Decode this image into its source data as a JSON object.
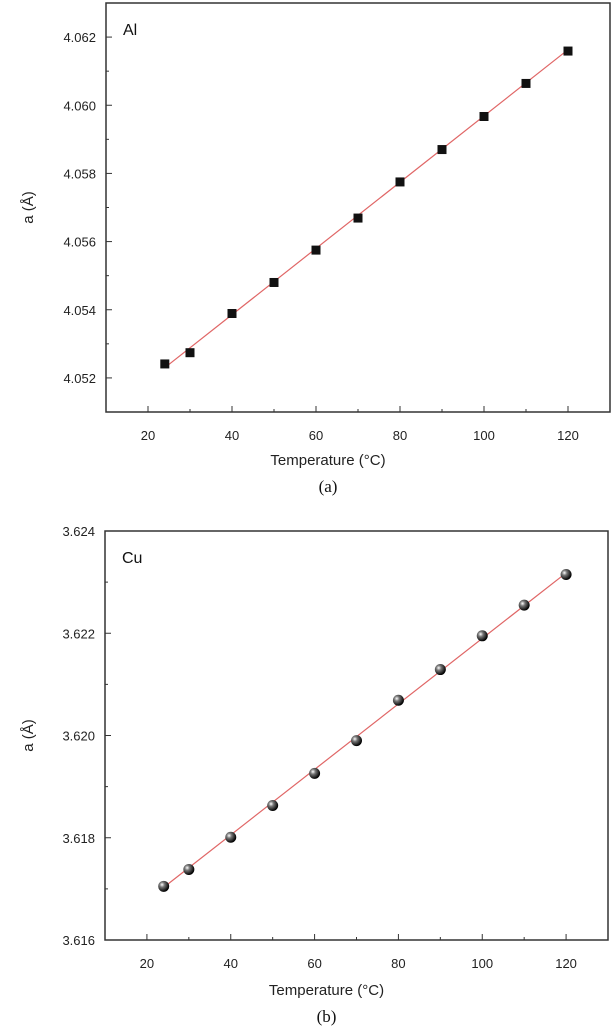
{
  "chart_data": [
    {
      "type": "scatter",
      "panel_label": "(a)",
      "annotation": "Al",
      "xlabel": "Temperature (°C)",
      "ylabel": "a (Å)",
      "xlim": [
        10,
        130
      ],
      "ylim": [
        4.051,
        4.063
      ],
      "xticks": [
        20,
        40,
        60,
        80,
        100,
        120
      ],
      "yticks": [
        4.052,
        4.054,
        4.056,
        4.058,
        4.06,
        4.062
      ],
      "ytick_labels": [
        "4.052",
        "4.054",
        "4.056",
        "4.058",
        "4.060",
        "4.062"
      ],
      "grid": false,
      "marker": "square",
      "marker_color": "#111111",
      "fit_line_color": "#e06666",
      "x": [
        24,
        30,
        40,
        50,
        60,
        70,
        80,
        90,
        100,
        110,
        120
      ],
      "y": [
        4.05241,
        4.05274,
        4.05389,
        4.0548,
        4.05575,
        4.05669,
        4.05775,
        4.0587,
        4.05967,
        4.06064,
        4.06159
      ],
      "fit": {
        "x": [
          24,
          120
        ],
        "y": [
          4.0523,
          4.06163
        ]
      }
    },
    {
      "type": "scatter",
      "panel_label": "(b)",
      "annotation": "Cu",
      "xlabel": "Temperature (°C)",
      "ylabel": "a (Å)",
      "xlim": [
        10,
        130
      ],
      "ylim": [
        3.616,
        3.624
      ],
      "xticks": [
        20,
        40,
        60,
        80,
        100,
        120
      ],
      "yticks": [
        3.616,
        3.618,
        3.62,
        3.622,
        3.624
      ],
      "ytick_labels": [
        "3.616",
        "3.618",
        "3.620",
        "3.622",
        "3.624"
      ],
      "grid": false,
      "marker": "sphere",
      "marker_color": "#111111",
      "fit_line_color": "#e06666",
      "x": [
        24,
        30,
        40,
        50,
        60,
        70,
        80,
        90,
        100,
        110,
        120
      ],
      "y": [
        3.61705,
        3.61738,
        3.61801,
        3.61863,
        3.61926,
        3.6199,
        3.62069,
        3.62129,
        3.62195,
        3.62255,
        3.62315
      ],
      "fit": {
        "x": [
          24,
          120
        ],
        "y": [
          3.61703,
          3.62318
        ]
      }
    }
  ]
}
